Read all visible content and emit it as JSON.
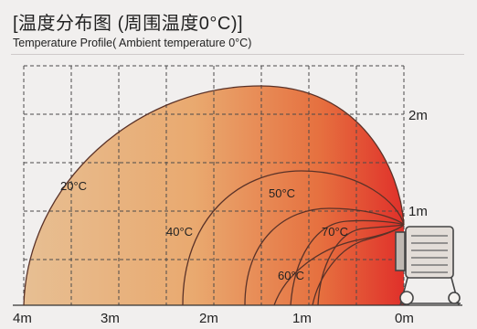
{
  "header": {
    "title": "[温度分布图 (周围温度0°C)]",
    "subtitle": "Temperature Profile( Ambient temperature 0°C)"
  },
  "x_axis_labels": [
    "4m",
    "3m",
    "2m",
    "1m",
    "0m"
  ],
  "y_axis_labels": [
    "2m",
    "1m"
  ],
  "temperature_labels": {
    "t20": "20°C",
    "t40": "40°C",
    "t50": "50°C",
    "t60": "60°C",
    "t70": "70°C"
  },
  "colors": {
    "gradient_left": "#e6b98a",
    "gradient_right": "#e2352a",
    "grid": "#4a4a4a",
    "contour": "#5a3228"
  }
}
